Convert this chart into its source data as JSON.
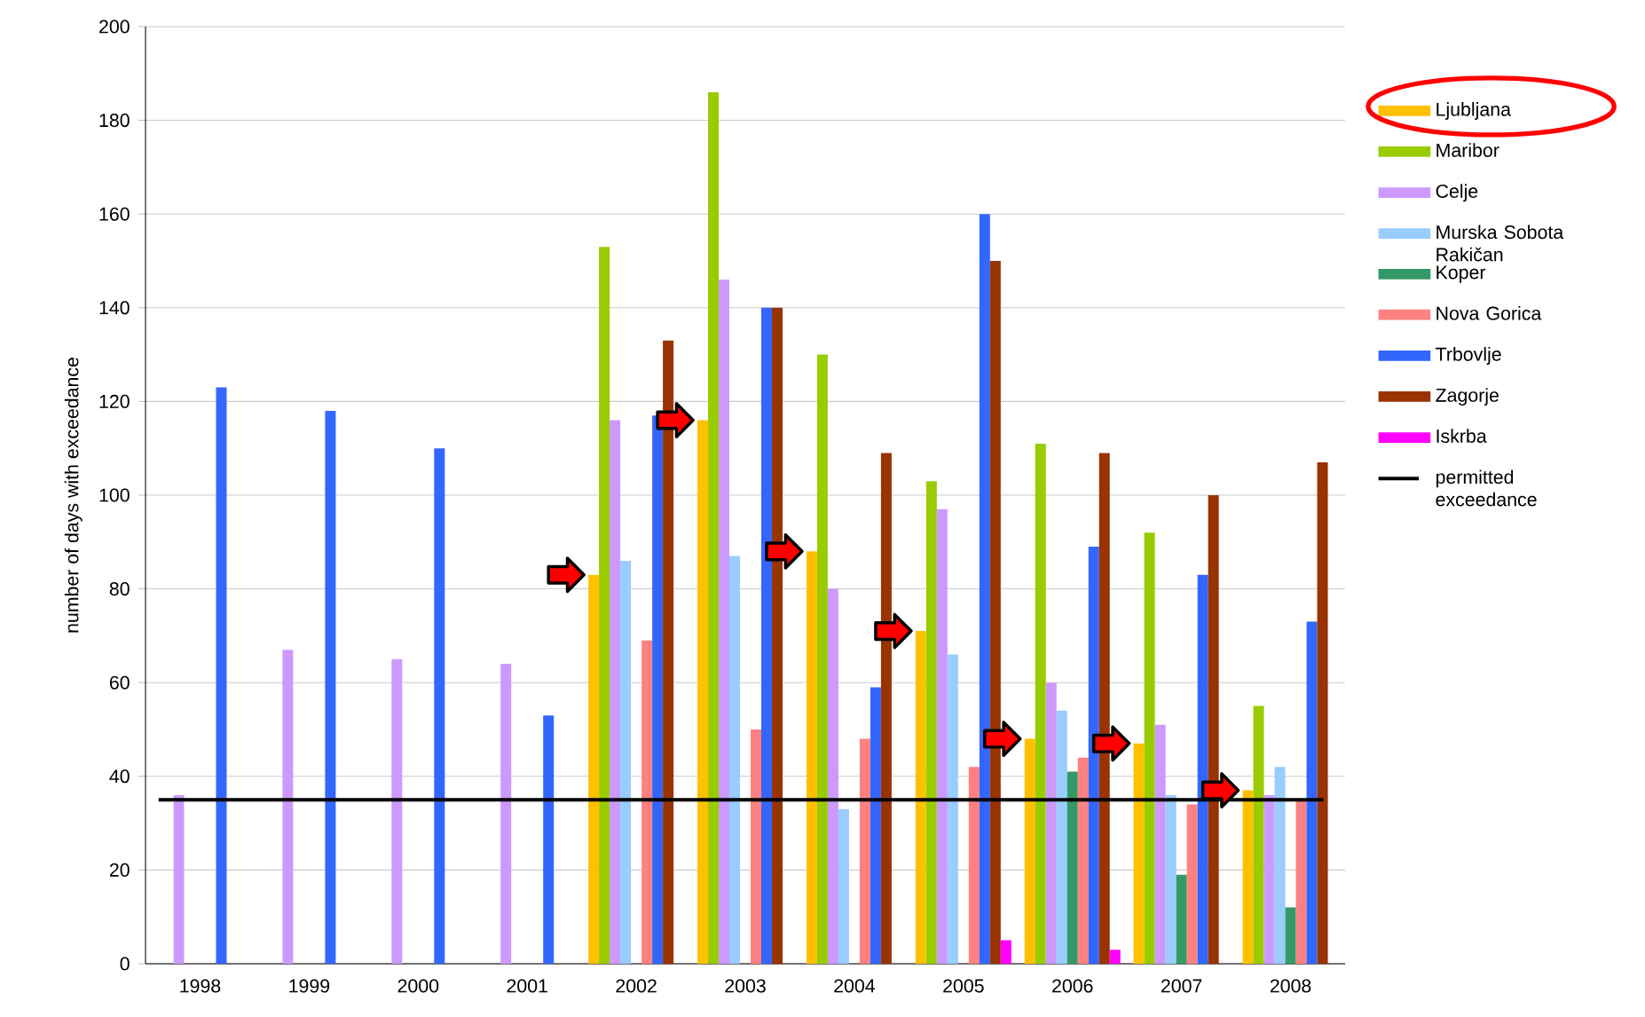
{
  "chart_data": {
    "type": "bar",
    "ylabel": "number of days with exceedance",
    "categories": [
      "1998",
      "1999",
      "2000",
      "2001",
      "2002",
      "2003",
      "2004",
      "2005",
      "2006",
      "2007",
      "2008"
    ],
    "series": [
      {
        "name": "Ljubljana",
        "color": "#ffc000",
        "values": [
          null,
          null,
          null,
          null,
          83,
          116,
          88,
          71,
          48,
          47,
          37
        ]
      },
      {
        "name": "Maribor",
        "color": "#99cc00",
        "values": [
          null,
          null,
          null,
          null,
          153,
          186,
          130,
          103,
          111,
          92,
          55
        ]
      },
      {
        "name": "Celje",
        "color": "#cc99ff",
        "values": [
          36,
          67,
          65,
          64,
          116,
          146,
          80,
          97,
          60,
          51,
          36
        ]
      },
      {
        "name": "Murska Sobota Rakičan",
        "color": "#99ccff",
        "values": [
          null,
          null,
          null,
          null,
          86,
          87,
          33,
          66,
          54,
          36,
          42
        ]
      },
      {
        "name": "Koper",
        "color": "#339966",
        "values": [
          null,
          null,
          null,
          null,
          null,
          null,
          null,
          null,
          41,
          19,
          12
        ]
      },
      {
        "name": "Nova Gorica",
        "color": "#ff8080",
        "values": [
          null,
          null,
          null,
          null,
          69,
          50,
          48,
          42,
          44,
          34,
          35
        ]
      },
      {
        "name": "Trbovlje",
        "color": "#3366ff",
        "values": [
          123,
          118,
          110,
          53,
          117,
          140,
          59,
          160,
          89,
          83,
          73
        ]
      },
      {
        "name": "Zagorje",
        "color": "#993300",
        "values": [
          null,
          null,
          null,
          null,
          133,
          140,
          109,
          150,
          109,
          100,
          107
        ]
      },
      {
        "name": "Iskrba",
        "color": "#ff00ff",
        "values": [
          null,
          null,
          null,
          null,
          null,
          null,
          null,
          5,
          3,
          null,
          null
        ]
      }
    ],
    "ref_lines": [
      {
        "axis": "y",
        "value": 35,
        "label": "permitted exceedance",
        "color": "#000000"
      }
    ],
    "ylim": [
      0,
      200
    ],
    "yticks": [
      0,
      20,
      40,
      60,
      80,
      100,
      120,
      140,
      160,
      180,
      200
    ],
    "grid": "y",
    "legend": "right"
  }
}
